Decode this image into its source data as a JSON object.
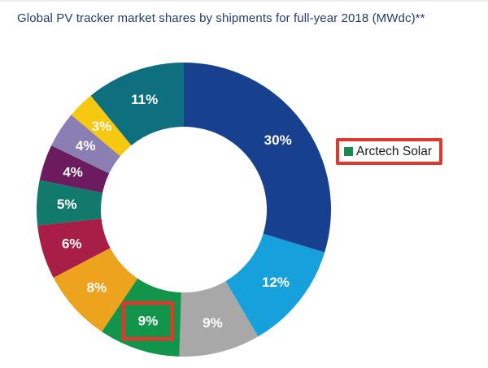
{
  "title": "Global PV tracker market shares by shipments for full-year 2018 (MWdc)**",
  "chart_data": {
    "type": "pie",
    "subtype": "donut",
    "title": "Global PV tracker market shares by shipments for full-year 2018 (MWdc)**",
    "unit": "%",
    "legend_position": "right",
    "slice_order": "clockwise from 12 o'clock",
    "slices": [
      {
        "label": "30%",
        "value": 30,
        "color": "#17418E"
      },
      {
        "label": "12%",
        "value": 12,
        "color": "#16A0DC"
      },
      {
        "label": "9%",
        "value": 9,
        "color": "#A8A8A8"
      },
      {
        "label": "9%",
        "value": 9,
        "color": "#12954A",
        "name": "Arctech Solar",
        "highlighted": true
      },
      {
        "label": "8%",
        "value": 8,
        "color": "#EEA31F"
      },
      {
        "label": "6%",
        "value": 6,
        "color": "#A91E47"
      },
      {
        "label": "5%",
        "value": 5,
        "color": "#117A6C"
      },
      {
        "label": "4%",
        "value": 4,
        "color": "#6B1B5E"
      },
      {
        "label": "4%",
        "value": 4,
        "color": "#8B7EB2"
      },
      {
        "label": "3%",
        "value": 3,
        "color": "#F6C80F"
      },
      {
        "label": "11%",
        "value": 11,
        "color": "#0E6F7E"
      }
    ],
    "legend": [
      {
        "label": "Arctech Solar",
        "marker_color": "#1A8A4C"
      }
    ]
  },
  "colors": {
    "title_text": "#243C64",
    "slice_label_text": "#FFFFFF",
    "highlight_border": "#E2382C",
    "background": "#FFFFFF"
  }
}
